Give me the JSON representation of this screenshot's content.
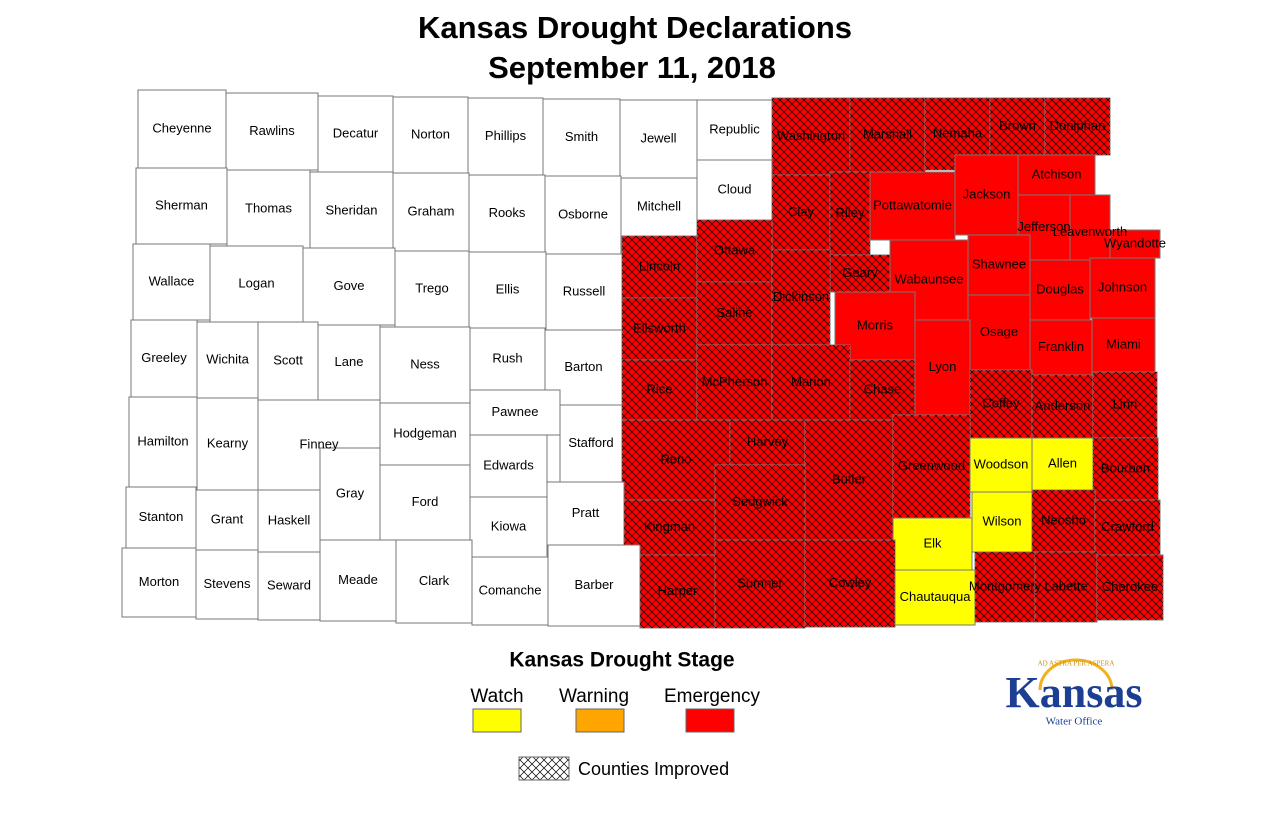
{
  "title": [
    "Kansas Drought Declarations",
    "September 11, 2018"
  ],
  "legend": {
    "title": "Kansas Drought Stage",
    "stages": [
      "Watch",
      "Warning",
      "Emergency"
    ],
    "stage_colors": [
      "#ffff00",
      "#ffa500",
      "#ff0000"
    ],
    "improved_label": "Counties Improved"
  },
  "logo": {
    "motto": "AD ASTRA PER ASPERA",
    "name": "Kansas",
    "sub": "Water Office"
  },
  "counties": [
    {
      "name": "Cheyenne",
      "stage": null,
      "improved": false
    },
    {
      "name": "Rawlins",
      "stage": null,
      "improved": false
    },
    {
      "name": "Decatur",
      "stage": null,
      "improved": false
    },
    {
      "name": "Norton",
      "stage": null,
      "improved": false
    },
    {
      "name": "Phillips",
      "stage": null,
      "improved": false
    },
    {
      "name": "Smith",
      "stage": null,
      "improved": false
    },
    {
      "name": "Jewell",
      "stage": null,
      "improved": false
    },
    {
      "name": "Republic",
      "stage": null,
      "improved": false
    },
    {
      "name": "Washington",
      "stage": 2,
      "improved": true
    },
    {
      "name": "Marshall",
      "stage": 2,
      "improved": true
    },
    {
      "name": "Nemaha",
      "stage": 2,
      "improved": true
    },
    {
      "name": "Brown",
      "stage": 2,
      "improved": true
    },
    {
      "name": "Doniphan",
      "stage": 2,
      "improved": true
    },
    {
      "name": "Sherman",
      "stage": null,
      "improved": false
    },
    {
      "name": "Thomas",
      "stage": null,
      "improved": false
    },
    {
      "name": "Sheridan",
      "stage": null,
      "improved": false
    },
    {
      "name": "Graham",
      "stage": null,
      "improved": false
    },
    {
      "name": "Rooks",
      "stage": null,
      "improved": false
    },
    {
      "name": "Osborne",
      "stage": null,
      "improved": false
    },
    {
      "name": "Mitchell",
      "stage": null,
      "improved": false
    },
    {
      "name": "Cloud",
      "stage": null,
      "improved": false
    },
    {
      "name": "Clay",
      "stage": 2,
      "improved": true
    },
    {
      "name": "Riley",
      "stage": 2,
      "improved": true
    },
    {
      "name": "Pottawatomie",
      "stage": 2,
      "improved": false
    },
    {
      "name": "Jackson",
      "stage": 2,
      "improved": false
    },
    {
      "name": "Atchison",
      "stage": 2,
      "improved": false
    },
    {
      "name": "Wallace",
      "stage": null,
      "improved": false
    },
    {
      "name": "Logan",
      "stage": null,
      "improved": false
    },
    {
      "name": "Gove",
      "stage": null,
      "improved": false
    },
    {
      "name": "Trego",
      "stage": null,
      "improved": false
    },
    {
      "name": "Ellis",
      "stage": null,
      "improved": false
    },
    {
      "name": "Russell",
      "stage": null,
      "improved": false
    },
    {
      "name": "Lincoln",
      "stage": 2,
      "improved": true
    },
    {
      "name": "Ottawa",
      "stage": 2,
      "improved": true
    },
    {
      "name": "Jefferson",
      "stage": 2,
      "improved": false
    },
    {
      "name": "Leavenworth",
      "stage": 2,
      "improved": false
    },
    {
      "name": "Wyandotte",
      "stage": 2,
      "improved": false
    },
    {
      "name": "Geary",
      "stage": 2,
      "improved": true
    },
    {
      "name": "Wabaunsee",
      "stage": 2,
      "improved": false
    },
    {
      "name": "Shawnee",
      "stage": 2,
      "improved": false
    },
    {
      "name": "Greeley",
      "stage": null,
      "improved": false
    },
    {
      "name": "Wichita",
      "stage": null,
      "improved": false
    },
    {
      "name": "Scott",
      "stage": null,
      "improved": false
    },
    {
      "name": "Lane",
      "stage": null,
      "improved": false
    },
    {
      "name": "Ness",
      "stage": null,
      "improved": false
    },
    {
      "name": "Rush",
      "stage": null,
      "improved": false
    },
    {
      "name": "Barton",
      "stage": null,
      "improved": false
    },
    {
      "name": "Ellsworth",
      "stage": 2,
      "improved": true
    },
    {
      "name": "Saline",
      "stage": 2,
      "improved": true
    },
    {
      "name": "Dickinson",
      "stage": 2,
      "improved": true
    },
    {
      "name": "Morris",
      "stage": 2,
      "improved": false
    },
    {
      "name": "Douglas",
      "stage": 2,
      "improved": false
    },
    {
      "name": "Johnson",
      "stage": 2,
      "improved": false
    },
    {
      "name": "Osage",
      "stage": 2,
      "improved": false
    },
    {
      "name": "Franklin",
      "stage": 2,
      "improved": false
    },
    {
      "name": "Miami",
      "stage": 2,
      "improved": false
    },
    {
      "name": "Hamilton",
      "stage": null,
      "improved": false
    },
    {
      "name": "Kearny",
      "stage": null,
      "improved": false
    },
    {
      "name": "Finney",
      "stage": null,
      "improved": false
    },
    {
      "name": "Hodgeman",
      "stage": null,
      "improved": false
    },
    {
      "name": "Pawnee",
      "stage": null,
      "improved": false
    },
    {
      "name": "Stafford",
      "stage": null,
      "improved": false
    },
    {
      "name": "Rice",
      "stage": 2,
      "improved": true
    },
    {
      "name": "McPherson",
      "stage": 2,
      "improved": true
    },
    {
      "name": "Marion",
      "stage": 2,
      "improved": true
    },
    {
      "name": "Chase",
      "stage": 2,
      "improved": true
    },
    {
      "name": "Lyon",
      "stage": 2,
      "improved": false
    },
    {
      "name": "Coffey",
      "stage": 2,
      "improved": true
    },
    {
      "name": "Anderson",
      "stage": 2,
      "improved": true
    },
    {
      "name": "Linn",
      "stage": 2,
      "improved": true
    },
    {
      "name": "Edwards",
      "stage": null,
      "improved": false
    },
    {
      "name": "Reno",
      "stage": 2,
      "improved": true
    },
    {
      "name": "Harvey",
      "stage": 2,
      "improved": true
    },
    {
      "name": "Butler",
      "stage": 2,
      "improved": true
    },
    {
      "name": "Greenwood",
      "stage": 2,
      "improved": true
    },
    {
      "name": "Woodson",
      "stage": 0,
      "improved": false
    },
    {
      "name": "Allen",
      "stage": 0,
      "improved": false
    },
    {
      "name": "Bourbon",
      "stage": 2,
      "improved": true
    },
    {
      "name": "Stanton",
      "stage": null,
      "improved": false
    },
    {
      "name": "Grant",
      "stage": null,
      "improved": false
    },
    {
      "name": "Haskell",
      "stage": null,
      "improved": false
    },
    {
      "name": "Gray",
      "stage": null,
      "improved": false
    },
    {
      "name": "Ford",
      "stage": null,
      "improved": false
    },
    {
      "name": "Kiowa",
      "stage": null,
      "improved": false
    },
    {
      "name": "Pratt",
      "stage": null,
      "improved": false
    },
    {
      "name": "Kingman",
      "stage": 2,
      "improved": true
    },
    {
      "name": "Sedgwick",
      "stage": 2,
      "improved": true
    },
    {
      "name": "Elk",
      "stage": 0,
      "improved": false
    },
    {
      "name": "Wilson",
      "stage": 0,
      "improved": false
    },
    {
      "name": "Neosho",
      "stage": 2,
      "improved": true
    },
    {
      "name": "Crawford",
      "stage": 2,
      "improved": true
    },
    {
      "name": "Morton",
      "stage": null,
      "improved": false
    },
    {
      "name": "Stevens",
      "stage": null,
      "improved": false
    },
    {
      "name": "Seward",
      "stage": null,
      "improved": false
    },
    {
      "name": "Meade",
      "stage": null,
      "improved": false
    },
    {
      "name": "Clark",
      "stage": null,
      "improved": false
    },
    {
      "name": "Comanche",
      "stage": null,
      "improved": false
    },
    {
      "name": "Barber",
      "stage": null,
      "improved": false
    },
    {
      "name": "Harper",
      "stage": 2,
      "improved": true
    },
    {
      "name": "Sumner",
      "stage": 2,
      "improved": true
    },
    {
      "name": "Cowley",
      "stage": 2,
      "improved": true
    },
    {
      "name": "Chautauqua",
      "stage": 0,
      "improved": false
    },
    {
      "name": "Montgomery",
      "stage": 2,
      "improved": true
    },
    {
      "name": "Labette",
      "stage": 2,
      "improved": true
    },
    {
      "name": "Cherokee",
      "stage": 2,
      "improved": true
    }
  ]
}
